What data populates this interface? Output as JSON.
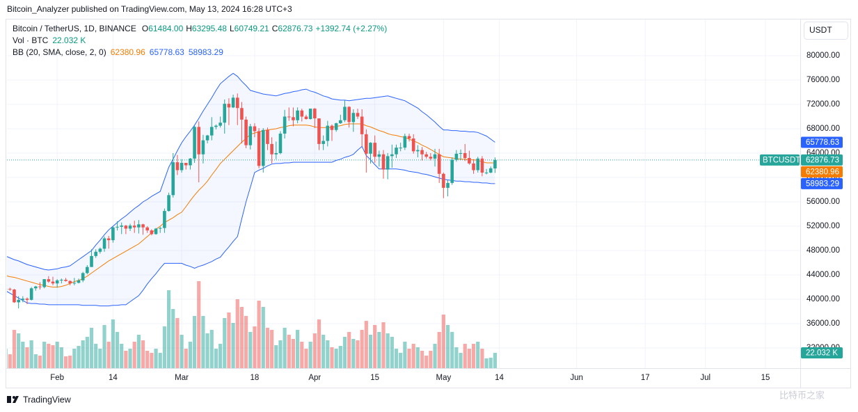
{
  "chart_data": {
    "type": "candlestick",
    "publisher_line": "Bitcoin_Analyzer published on TradingView.com, May 13, 2024 16:28 UTC+3",
    "symbol_title": "Bitcoin / TetherUS, 1D, BINANCE",
    "ohlc_keys": [
      "O",
      "H",
      "L",
      "C"
    ],
    "open_label": "61484.00",
    "change_label": "+1392.74 (+2.27%)",
    "volume_title": "Vol · BTC",
    "volume_label": "22.032 K",
    "bb_title": "BB (20, SMA, close, 2, 0)",
    "currency": "USDT",
    "symbol_tag": "BTCUSDT",
    "branding": "TradingView",
    "watermark": "比特币之家",
    "up_color": "#26a69a",
    "down_color": "#ef5350",
    "grid": true,
    "xlim": [
      0.3,
      185.1
    ],
    "xticks": [
      {
        "value": 12,
        "label": "Feb"
      },
      {
        "value": 25,
        "label": "14"
      },
      {
        "value": 41,
        "label": "Mar"
      },
      {
        "value": 58,
        "label": "18"
      },
      {
        "value": 72,
        "label": "Apr"
      },
      {
        "value": 86,
        "label": "15"
      },
      {
        "value": 102,
        "label": "May"
      },
      {
        "value": 115,
        "label": "14"
      },
      {
        "value": 133,
        "label": "Jun"
      },
      {
        "value": 149,
        "label": "17"
      },
      {
        "value": 163,
        "label": "Jul"
      },
      {
        "value": 177,
        "label": "15"
      }
    ],
    "ylim": [
      28686,
      85943
    ],
    "yticks": [
      {
        "value": 32000,
        "label": "32000.00"
      },
      {
        "value": 36000,
        "label": "36000.00"
      },
      {
        "value": 40000,
        "label": "40000.00"
      },
      {
        "value": 44000,
        "label": "44000.00"
      },
      {
        "value": 48000,
        "label": "48000.00"
      },
      {
        "value": 52000,
        "label": "52000.00"
      },
      {
        "value": 56000,
        "label": "56000.00"
      },
      {
        "value": 60000,
        "label": "60000.00"
      },
      {
        "value": 64000,
        "label": "64000.00"
      },
      {
        "value": 68000,
        "label": "68000.00"
      },
      {
        "value": 72000,
        "label": "72000.00"
      },
      {
        "value": 76000,
        "label": "76000.00"
      },
      {
        "value": 80000,
        "label": "80000.00"
      }
    ],
    "volume_ylim": [
      0,
      501
    ],
    "candles": [
      [
        41600,
        41900,
        41400,
        41700
      ],
      [
        41700,
        41900,
        41400,
        41600
      ],
      [
        41600,
        41700,
        39400,
        39500
      ],
      [
        39500,
        40500,
        38500,
        39900
      ],
      [
        39900,
        40500,
        39500,
        40100
      ],
      [
        40100,
        40300,
        39200,
        39900
      ],
      [
        39900,
        42000,
        39800,
        41800
      ],
      [
        41800,
        42200,
        41400,
        42100
      ],
      [
        42100,
        42800,
        41600,
        42000
      ],
      [
        42000,
        43300,
        41800,
        43300
      ],
      [
        43300,
        43800,
        42700,
        42900
      ],
      [
        42900,
        43700,
        42300,
        42600
      ],
      [
        42600,
        43300,
        41900,
        43100
      ],
      [
        43100,
        43400,
        42600,
        43200
      ],
      [
        43200,
        43500,
        42900,
        43000
      ],
      [
        43000,
        43100,
        42300,
        42600
      ],
      [
        42600,
        43500,
        42300,
        42700
      ],
      [
        42700,
        43400,
        42600,
        43100
      ],
      [
        43100,
        44500,
        42800,
        44300
      ],
      [
        44300,
        45600,
        44100,
        45300
      ],
      [
        45300,
        48200,
        45300,
        47100
      ],
      [
        47100,
        48200,
        46800,
        47800
      ],
      [
        47800,
        48500,
        47500,
        48300
      ],
      [
        48300,
        50300,
        47800,
        50000
      ],
      [
        50000,
        50400,
        48300,
        49700
      ],
      [
        49700,
        52000,
        49300,
        51800
      ],
      [
        51800,
        52800,
        51300,
        51900
      ],
      [
        51900,
        52600,
        50700,
        52100
      ],
      [
        52100,
        52200,
        50700,
        51600
      ],
      [
        51600,
        52400,
        51200,
        52100
      ],
      [
        52100,
        52900,
        50900,
        51800
      ],
      [
        51800,
        53000,
        50800,
        52300
      ],
      [
        52300,
        52400,
        50600,
        51800
      ],
      [
        51800,
        52000,
        50900,
        51300
      ],
      [
        51300,
        51500,
        50500,
        50700
      ],
      [
        50700,
        51700,
        50600,
        51600
      ],
      [
        51600,
        51900,
        50900,
        51700
      ],
      [
        51700,
        54900,
        50900,
        54500
      ],
      [
        54500,
        57500,
        54400,
        57100
      ],
      [
        57100,
        64000,
        56700,
        62500
      ],
      [
        62500,
        63700,
        60400,
        61200
      ],
      [
        61200,
        63000,
        60800,
        62400
      ],
      [
        62400,
        62400,
        61300,
        62000
      ],
      [
        62000,
        63200,
        61300,
        63100
      ],
      [
        63100,
        68500,
        62400,
        68300
      ],
      [
        68300,
        69200,
        59200,
        63800
      ],
      [
        63800,
        67000,
        62300,
        66100
      ],
      [
        66100,
        67000,
        65600,
        66900
      ],
      [
        66900,
        69900,
        66100,
        68300
      ],
      [
        68300,
        68700,
        67900,
        68500
      ],
      [
        68500,
        70000,
        68200,
        69000
      ],
      [
        69000,
        72800,
        67200,
        72100
      ],
      [
        72100,
        73000,
        68600,
        71500
      ],
      [
        71500,
        73600,
        71400,
        73100
      ],
      [
        73100,
        73800,
        68600,
        71400
      ],
      [
        71400,
        72400,
        65600,
        69500
      ],
      [
        69500,
        70000,
        64800,
        65300
      ],
      [
        65300,
        68800,
        64600,
        68400
      ],
      [
        68400,
        68900,
        66600,
        67600
      ],
      [
        67600,
        68100,
        61500,
        61900
      ],
      [
        61900,
        68100,
        60800,
        67800
      ],
      [
        67800,
        68200,
        64500,
        65500
      ],
      [
        65500,
        66600,
        62300,
        63800
      ],
      [
        63800,
        65900,
        63000,
        64000
      ],
      [
        64000,
        67600,
        63800,
        67200
      ],
      [
        67200,
        71100,
        66400,
        70000
      ],
      [
        70000,
        71500,
        69300,
        69900
      ],
      [
        69900,
        71500,
        68400,
        69400
      ],
      [
        69400,
        71500,
        68900,
        71000
      ],
      [
        71000,
        71300,
        69200,
        70000
      ],
      [
        70000,
        70300,
        69500,
        69600
      ],
      [
        69600,
        71300,
        69500,
        71300
      ],
      [
        71300,
        71400,
        68100,
        69700
      ],
      [
        69700,
        69700,
        64500,
        65500
      ],
      [
        65500,
        66900,
        64500,
        66000
      ],
      [
        66000,
        69300,
        65100,
        68500
      ],
      [
        68500,
        68700,
        66000,
        67800
      ],
      [
        67800,
        69000,
        67500,
        68900
      ],
      [
        68900,
        70300,
        68800,
        69400
      ],
      [
        69400,
        72700,
        69100,
        71600
      ],
      [
        71600,
        71700,
        68200,
        69100
      ],
      [
        69100,
        71200,
        67500,
        70600
      ],
      [
        70600,
        71300,
        69600,
        70000
      ],
      [
        70000,
        71200,
        65100,
        67100
      ],
      [
        67100,
        67900,
        60800,
        63900
      ],
      [
        63900,
        65800,
        62300,
        65700
      ],
      [
        65700,
        66900,
        62400,
        63400
      ],
      [
        63400,
        64400,
        61800,
        63800
      ],
      [
        63800,
        64500,
        59800,
        61300
      ],
      [
        61300,
        64000,
        59700,
        63500
      ],
      [
        63500,
        65400,
        61600,
        63800
      ],
      [
        63800,
        65400,
        63200,
        64900
      ],
      [
        64900,
        65700,
        64300,
        64900
      ],
      [
        64900,
        67200,
        64500,
        66800
      ],
      [
        66800,
        67200,
        65900,
        66400
      ],
      [
        66400,
        67100,
        63900,
        64300
      ],
      [
        64300,
        65300,
        63300,
        64500
      ],
      [
        64500,
        65000,
        62800,
        63800
      ],
      [
        63800,
        64200,
        63100,
        63400
      ],
      [
        63400,
        64000,
        62800,
        63100
      ],
      [
        63100,
        64700,
        61800,
        63800
      ],
      [
        63800,
        64700,
        59100,
        60600
      ],
      [
        60600,
        60800,
        56600,
        58300
      ],
      [
        58300,
        59600,
        56900,
        59100
      ],
      [
        59100,
        63300,
        58800,
        62900
      ],
      [
        62900,
        64500,
        62600,
        63900
      ],
      [
        63900,
        64600,
        62900,
        64000
      ],
      [
        64000,
        65500,
        62700,
        63200
      ],
      [
        63200,
        64400,
        62100,
        62300
      ],
      [
        62300,
        63000,
        60600,
        61200
      ],
      [
        61200,
        63400,
        60800,
        63100
      ],
      [
        63100,
        63500,
        60200,
        60800
      ],
      [
        60800,
        61400,
        60500,
        60800
      ],
      [
        60800,
        61800,
        60700,
        61500
      ],
      [
        61484,
        63295.48,
        60749.21,
        62876.73
      ]
    ],
    "volumes": [
      28,
      20,
      55,
      50,
      38,
      30,
      40,
      20,
      18,
      38,
      35,
      33,
      38,
      30,
      17,
      18,
      28,
      32,
      40,
      45,
      58,
      35,
      28,
      62,
      38,
      70,
      52,
      35,
      25,
      28,
      38,
      48,
      40,
      25,
      22,
      28,
      22,
      60,
      112,
      85,
      72,
      48,
      28,
      38,
      75,
      125,
      75,
      50,
      55,
      28,
      35,
      72,
      80,
      65,
      99,
      88,
      75,
      52,
      60,
      97,
      88,
      58,
      55,
      33,
      40,
      58,
      48,
      42,
      55,
      38,
      28,
      38,
      50,
      70,
      48,
      40,
      30,
      28,
      32,
      45,
      52,
      42,
      40,
      55,
      68,
      48,
      62,
      52,
      66,
      50,
      45,
      28,
      22,
      38,
      28,
      35,
      30,
      25,
      18,
      25,
      35,
      52,
      77,
      62,
      52,
      30,
      22,
      35,
      28,
      35,
      38,
      28,
      14,
      15,
      22.032
    ],
    "bb": {
      "basis": {
        "color": "#f57c00",
        "values": [
          43900,
          43700,
          43600,
          43400,
          43200,
          43000,
          42800,
          42600,
          42400,
          42300,
          42100,
          42000,
          42000,
          42100,
          42300,
          42600,
          42900,
          43100,
          43400,
          43800,
          44300,
          44800,
          45300,
          45800,
          46300,
          46700,
          47100,
          47500,
          47900,
          48300,
          48700,
          49100,
          49700,
          50300,
          50900,
          51500,
          52000,
          52600,
          53000,
          53400,
          53900,
          54300,
          55200,
          56200,
          57100,
          57900,
          58600,
          59400,
          60400,
          61300,
          62300,
          63000,
          63700,
          64400,
          65100,
          65800,
          66400,
          67100,
          67300,
          67500,
          67700,
          67800,
          67900,
          68000,
          68200,
          68300,
          68500,
          68600,
          68600,
          68600,
          68600,
          68500,
          68300,
          68200,
          68200,
          68200,
          68200,
          68400,
          68500,
          68700,
          68800,
          68800,
          68800,
          68800,
          68500,
          68300,
          68000,
          67700,
          67500,
          67200,
          67000,
          66900,
          66700,
          66600,
          66300,
          66000,
          65700,
          65300,
          65000,
          64600,
          64200,
          63800,
          63400,
          63300,
          63200,
          63100,
          63000,
          63000,
          62900,
          62900,
          62800,
          62600,
          62400,
          62400,
          62380.96
        ]
      },
      "upper": {
        "color": "#2962ff",
        "values": [
          47100,
          46800,
          46500,
          46300,
          46000,
          45700,
          45500,
          45300,
          45100,
          44900,
          44800,
          44900,
          45000,
          45200,
          45300,
          45500,
          46000,
          46500,
          47000,
          47500,
          48000,
          48900,
          49700,
          50600,
          51400,
          52000,
          52600,
          53200,
          53700,
          54300,
          54900,
          55400,
          56000,
          56400,
          56900,
          57300,
          57700,
          59700,
          61700,
          63000,
          64400,
          65700,
          66700,
          67600,
          68600,
          69700,
          70900,
          72000,
          73100,
          74300,
          75400,
          76000,
          76600,
          77100,
          76600,
          75800,
          75100,
          74300,
          74100,
          73900,
          73700,
          73600,
          73500,
          73400,
          73600,
          73800,
          73900,
          74100,
          74200,
          74400,
          74500,
          74200,
          74000,
          73700,
          73400,
          73200,
          72900,
          72800,
          72700,
          72700,
          72600,
          72700,
          72800,
          72900,
          73000,
          73000,
          73100,
          73200,
          73300,
          73400,
          73200,
          73000,
          72800,
          72600,
          72200,
          71800,
          71400,
          70800,
          70300,
          69700,
          69100,
          68400,
          67800,
          67800,
          67700,
          67700,
          67600,
          67600,
          67500,
          67500,
          67400,
          67100,
          66800,
          66300,
          65778.63
        ]
      },
      "lower": {
        "color": "#2962ff",
        "values": [
          41400,
          41000,
          40600,
          40200,
          39800,
          39400,
          39300,
          39300,
          39200,
          39200,
          39100,
          39100,
          39100,
          39100,
          39100,
          39100,
          39100,
          39100,
          39000,
          39000,
          39000,
          39000,
          38900,
          38900,
          38900,
          39000,
          39000,
          39100,
          39100,
          39600,
          40100,
          40600,
          41500,
          42500,
          43400,
          44200,
          45100,
          45900,
          45900,
          45900,
          45900,
          45900,
          45600,
          45400,
          45100,
          45400,
          45600,
          45900,
          46200,
          46600,
          46900,
          47800,
          48600,
          49500,
          50300,
          53200,
          56000,
          58400,
          60800,
          61200,
          61500,
          61900,
          62200,
          62300,
          62300,
          62400,
          62400,
          62500,
          62500,
          62500,
          62500,
          62500,
          62500,
          62500,
          62500,
          62500,
          62500,
          62800,
          63000,
          63300,
          63500,
          63800,
          64500,
          65100,
          63600,
          62900,
          62100,
          61400,
          61400,
          61400,
          61400,
          61400,
          61300,
          61200,
          61000,
          60900,
          60800,
          60600,
          60500,
          60300,
          60100,
          59900,
          59700,
          59600,
          59500,
          59400,
          59400,
          59300,
          59300,
          59200,
          59200,
          59100,
          59100,
          59000,
          58983.29
        ]
      }
    }
  }
}
